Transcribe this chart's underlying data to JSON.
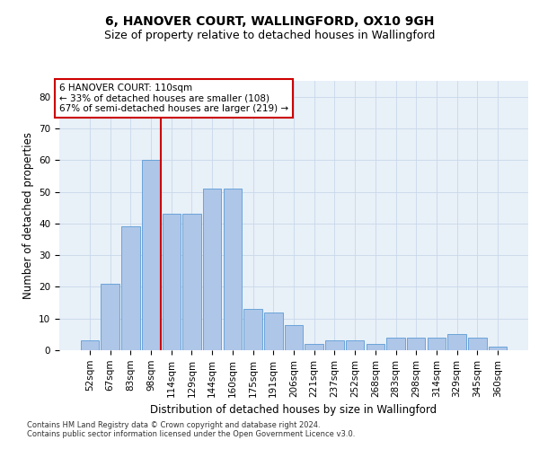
{
  "title": "6, HANOVER COURT, WALLINGFORD, OX10 9GH",
  "subtitle": "Size of property relative to detached houses in Wallingford",
  "xlabel": "Distribution of detached houses by size in Wallingford",
  "ylabel": "Number of detached properties",
  "footer_line1": "Contains HM Land Registry data © Crown copyright and database right 2024.",
  "footer_line2": "Contains public sector information licensed under the Open Government Licence v3.0.",
  "categories": [
    "52sqm",
    "67sqm",
    "83sqm",
    "98sqm",
    "114sqm",
    "129sqm",
    "144sqm",
    "160sqm",
    "175sqm",
    "191sqm",
    "206sqm",
    "221sqm",
    "237sqm",
    "252sqm",
    "268sqm",
    "283sqm",
    "298sqm",
    "314sqm",
    "329sqm",
    "345sqm",
    "360sqm"
  ],
  "values": [
    3,
    21,
    39,
    60,
    43,
    43,
    51,
    51,
    13,
    12,
    8,
    2,
    3,
    3,
    2,
    4,
    4,
    4,
    5,
    4,
    1
  ],
  "bar_color": "#aec6e8",
  "bar_edge_color": "#5b9bd5",
  "vline_color": "#cc0000",
  "annotation_text": "6 HANOVER COURT: 110sqm\n← 33% of detached houses are smaller (108)\n67% of semi-detached houses are larger (219) →",
  "annotation_box_color": "#cc0000",
  "annotation_bg_color": "white",
  "ylim": [
    0,
    85
  ],
  "yticks": [
    0,
    10,
    20,
    30,
    40,
    50,
    60,
    70,
    80
  ],
  "grid_color": "#c8d8ea",
  "bg_color": "#e8f0f8",
  "title_fontsize": 10,
  "subtitle_fontsize": 9,
  "xlabel_fontsize": 8.5,
  "ylabel_fontsize": 8.5,
  "tick_fontsize": 7.5,
  "annot_fontsize": 7.5,
  "footer_fontsize": 6
}
